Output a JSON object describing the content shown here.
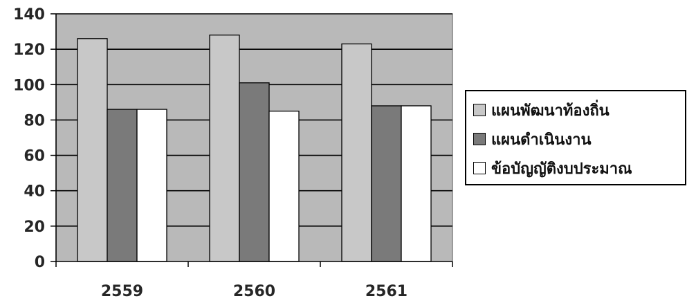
{
  "chart_data": {
    "type": "bar",
    "categories": [
      "2559",
      "2560",
      "2561"
    ],
    "series": [
      {
        "name": "แผนพัฒนาท้องถิ่น",
        "values": [
          126,
          128,
          123
        ],
        "color": "#c8c8c8"
      },
      {
        "name": "แผนดำเนินงาน",
        "values": [
          86,
          101,
          88
        ],
        "color": "#7a7a7a"
      },
      {
        "name": "ข้อบัญญัติงบประมาณ",
        "values": [
          86,
          85,
          88
        ],
        "color": "#ffffff"
      }
    ],
    "ylim": [
      0,
      140
    ],
    "yticks": [
      "0",
      "20",
      "40",
      "60",
      "80",
      "100",
      "120",
      "140"
    ],
    "plot_background": "#b9b9b9",
    "grid": true,
    "legend_position": "right"
  }
}
